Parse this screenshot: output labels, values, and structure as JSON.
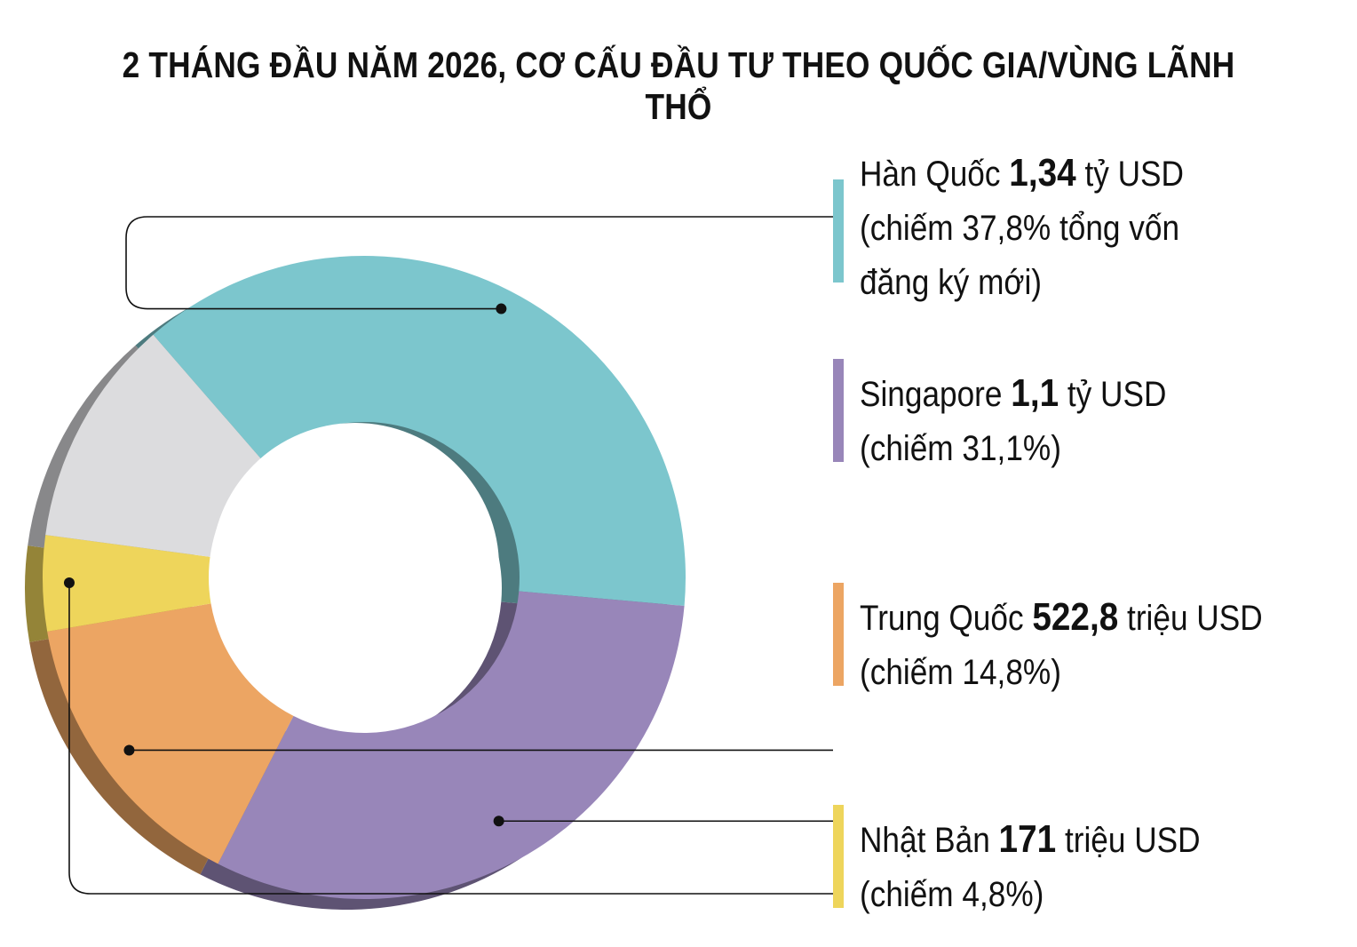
{
  "title": "2 THÁNG ĐẦU NĂM 2026, CƠ CẤU ĐẦU TƯ THEO QUỐC GIA/VÙNG LÃNH THỔ",
  "chart_data": {
    "type": "pie",
    "style": "donut",
    "title": "2 THÁNG ĐẦU NĂM 2026, CƠ CẤU ĐẦU TƯ THEO QUỐC GIA/VÙNG LÃNH THỔ",
    "units": "percent of total newly registered capital",
    "slices": [
      {
        "name": "Hàn Quốc",
        "value": 37.8,
        "color": "#7cc6cd",
        "amount": "1,34",
        "unit": "tỷ USD",
        "note_lines": [
          "(chiếm 37,8% tổng vốn",
          "đăng ký mới)"
        ]
      },
      {
        "name": "Singapore",
        "value": 31.1,
        "color": "#9886b9",
        "amount": "1,1",
        "unit": "tỷ USD",
        "note_lines": [
          "(chiếm 31,1%)"
        ]
      },
      {
        "name": "Trung Quốc",
        "value": 14.8,
        "color": "#eca563",
        "amount": "522,8",
        "unit": "triệu USD",
        "note_lines": [
          "(chiếm 14,8%)"
        ]
      },
      {
        "name": "Nhật Bản",
        "value": 4.8,
        "color": "#eed55b",
        "amount": "171",
        "unit": "triệu USD",
        "note_lines": [
          "(chiếm 4,8%)"
        ]
      },
      {
        "name": "",
        "value": 11.5,
        "color": "#dcdcde"
      }
    ]
  }
}
